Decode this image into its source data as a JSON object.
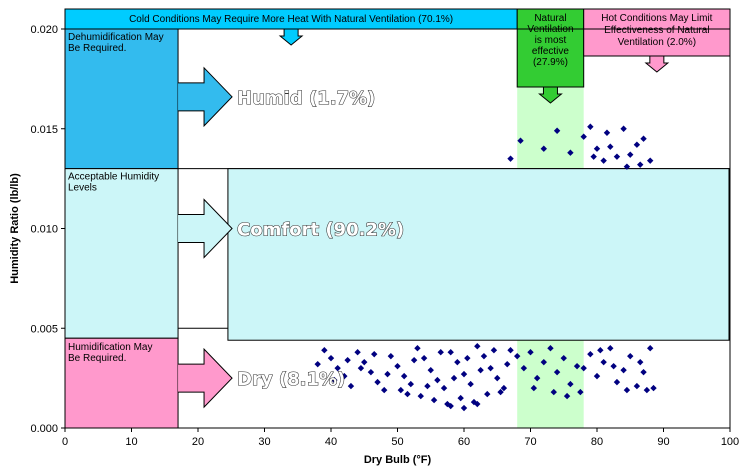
{
  "chart_data": {
    "type": "scatter",
    "xlabel": "Dry Bulb (°F)",
    "ylabel": "Humidity Ratio (lb/lb)",
    "xlim": [
      0,
      100
    ],
    "ylim": [
      0,
      0.02
    ],
    "x_ticks": [
      "0",
      "10",
      "20",
      "30",
      "40",
      "50",
      "60",
      "70",
      "80",
      "90",
      "100"
    ],
    "y_ticks": [
      "0.000",
      "0.005",
      "0.010",
      "0.015",
      "0.020"
    ],
    "grid": false,
    "marker_color": "#000080",
    "annotations": {
      "cold": "Cold Conditions May Require More Heat With Natural Ventilation (70.1%)",
      "natural": [
        "Natural",
        "Ventilation",
        "is most",
        "effective",
        "(27.9%)"
      ],
      "hot": [
        "Hot Conditions May Limit",
        "Effectiveness of Natural",
        "Ventilation (2.0%)"
      ],
      "dehumid": [
        "Dehumidification May",
        "Be Required."
      ],
      "acceptable": [
        "Acceptable Humidity",
        "Levels"
      ],
      "humidification": [
        "Humidification May",
        "Be Required."
      ],
      "humid_label": "Humid (1.7%)",
      "comfort_label": "Comfort (90.2%)",
      "dry_label": "Dry (8.1%)"
    },
    "zones": {
      "humid_min": 0.013,
      "dry_max": 0.0045,
      "panel_x_max": 17,
      "ventilation_x": [
        68,
        78
      ],
      "comfort_x": [
        24.5,
        100
      ],
      "comfort_y": [
        0.0044,
        0.013
      ]
    },
    "colors": {
      "humid": "#33BBEE",
      "acceptable": "#CCF6F8",
      "dry": "#FF99CC",
      "cold": "#00CCFF",
      "natural_box": "#33CC33",
      "natural_band": "#CCFFCC",
      "hot": "#FF99CC"
    },
    "series": [
      {
        "name": "",
        "points": [
          [
            39,
            0.0039
          ],
          [
            40,
            0.0035
          ],
          [
            41,
            0.003
          ],
          [
            42,
            0.0026
          ],
          [
            43,
            0.0021
          ],
          [
            44,
            0.0038
          ],
          [
            45,
            0.0033
          ],
          [
            46,
            0.0028
          ],
          [
            47,
            0.0023
          ],
          [
            48,
            0.0019
          ],
          [
            49,
            0.0036
          ],
          [
            50,
            0.0031
          ],
          [
            51,
            0.0026
          ],
          [
            52,
            0.0022
          ],
          [
            53,
            0.004
          ],
          [
            54,
            0.0035
          ],
          [
            55,
            0.0029
          ],
          [
            56,
            0.0024
          ],
          [
            57,
            0.002
          ],
          [
            58,
            0.0038
          ],
          [
            59,
            0.0033
          ],
          [
            60,
            0.0027
          ],
          [
            61,
            0.0022
          ],
          [
            62,
            0.0041
          ],
          [
            63,
            0.0036
          ],
          [
            64,
            0.003
          ],
          [
            65,
            0.0025
          ],
          [
            66,
            0.002
          ],
          [
            67,
            0.0039
          ],
          [
            38,
            0.0032
          ],
          [
            40.5,
            0.0024
          ],
          [
            42.5,
            0.0034
          ],
          [
            44.5,
            0.003
          ],
          [
            46.5,
            0.0037
          ],
          [
            48.5,
            0.0027
          ],
          [
            50.5,
            0.0019
          ],
          [
            52.5,
            0.0034
          ],
          [
            54.5,
            0.0021
          ],
          [
            56.5,
            0.0038
          ],
          [
            58.5,
            0.0025
          ],
          [
            60.5,
            0.0035
          ],
          [
            62.5,
            0.0029
          ],
          [
            64.5,
            0.0039
          ],
          [
            66.5,
            0.0032
          ],
          [
            53.5,
            0.0016
          ],
          [
            55.5,
            0.0014
          ],
          [
            57.5,
            0.0012
          ],
          [
            59.5,
            0.0015
          ],
          [
            61.5,
            0.0013
          ],
          [
            63.5,
            0.0017
          ],
          [
            65.5,
            0.0018
          ],
          [
            51.5,
            0.0017
          ],
          [
            58,
            0.0011
          ],
          [
            60,
            0.001
          ],
          [
            62,
            0.0012
          ],
          [
            68,
            0.0036
          ],
          [
            69,
            0.003
          ],
          [
            70,
            0.0038
          ],
          [
            71,
            0.0025
          ],
          [
            72,
            0.0033
          ],
          [
            73,
            0.004
          ],
          [
            74,
            0.0028
          ],
          [
            75,
            0.0035
          ],
          [
            76,
            0.0022
          ],
          [
            77,
            0.0031
          ],
          [
            70.5,
            0.002
          ],
          [
            73.5,
            0.0018
          ],
          [
            75.5,
            0.0016
          ],
          [
            78,
            0.003
          ],
          [
            79,
            0.0037
          ],
          [
            80,
            0.0026
          ],
          [
            81,
            0.0033
          ],
          [
            82,
            0.004
          ],
          [
            83,
            0.0023
          ],
          [
            84,
            0.0029
          ],
          [
            85,
            0.0036
          ],
          [
            86,
            0.0021
          ],
          [
            87,
            0.0028
          ],
          [
            88,
            0.004
          ],
          [
            80.5,
            0.0039
          ],
          [
            82.5,
            0.0031
          ],
          [
            84.5,
            0.0019
          ],
          [
            86.5,
            0.0033
          ],
          [
            88.5,
            0.002
          ],
          [
            87.5,
            0.0019
          ],
          [
            77.5,
            0.0018
          ],
          [
            67,
            0.0135
          ],
          [
            68.5,
            0.0144
          ],
          [
            72,
            0.014
          ],
          [
            74,
            0.0149
          ],
          [
            76,
            0.0138
          ],
          [
            78,
            0.0146
          ],
          [
            79,
            0.0151
          ],
          [
            80,
            0.014
          ],
          [
            81,
            0.0134
          ],
          [
            82,
            0.0141
          ],
          [
            83,
            0.0136
          ],
          [
            84,
            0.015
          ],
          [
            85,
            0.0137
          ],
          [
            86,
            0.0142
          ],
          [
            87,
            0.0145
          ],
          [
            88,
            0.0134
          ],
          [
            86.5,
            0.0132
          ],
          [
            84.5,
            0.0131
          ],
          [
            81.5,
            0.0148
          ],
          [
            79.5,
            0.0136
          ]
        ]
      }
    ]
  }
}
